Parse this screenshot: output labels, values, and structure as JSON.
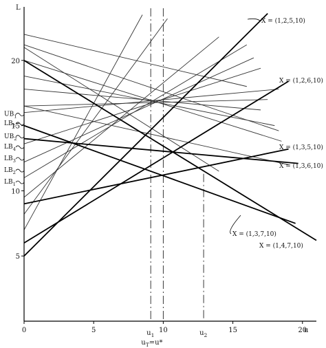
{
  "chart_data": {
    "type": "line",
    "xlim": [
      0,
      21
    ],
    "ylim": [
      0,
      24
    ],
    "x_ticks": [
      {
        "v": 0,
        "label": "0"
      },
      {
        "v": 5,
        "label": "5"
      },
      {
        "v": 10,
        "label": "10"
      },
      {
        "v": 15,
        "label": "15"
      },
      {
        "v": 20,
        "label": "20"
      }
    ],
    "y_ticks": [
      {
        "v": 5,
        "label": "5"
      },
      {
        "v": 10,
        "label": "10"
      },
      {
        "v": 15,
        "label": "15"
      },
      {
        "v": 20,
        "label": "20"
      }
    ],
    "x_axis_name": "u",
    "y_axis_name": "L",
    "vertical_markers": [
      {
        "x": 9.1,
        "label": "u1",
        "label_main": "u",
        "label_sub": "1",
        "dash": "long",
        "y_top": 24
      },
      {
        "x": 10.0,
        "label": "10",
        "dash": "long",
        "y_top": 24
      },
      {
        "x": 12.9,
        "label": "u2",
        "label_main": "u",
        "label_sub": "2",
        "dash": "long",
        "y_top": 11.3
      }
    ],
    "bottom_formula": {
      "main": "u",
      "sub": "T",
      "rest": "=u*"
    },
    "bound_labels": [
      {
        "main": "UB",
        "sub": "1",
        "y": 15.9
      },
      {
        "main": "LB",
        "sub": "5",
        "y": 15.2
      },
      {
        "main": "UB",
        "sub": "2",
        "y": 14.2
      },
      {
        "main": "LB",
        "sub": "4",
        "y": 13.4
      },
      {
        "main": "LB",
        "sub": "3",
        "y": 12.5
      },
      {
        "main": "LB",
        "sub": "2",
        "y": 11.6
      },
      {
        "main": "LB",
        "sub": "1",
        "y": 10.7
      }
    ],
    "highlighted_series": [
      {
        "name": "X = (1,2,5,10)",
        "x": [
          0,
          17.5
        ],
        "y": [
          5.0,
          23.6
        ]
      },
      {
        "name": "X = (1,2,6,10)",
        "x": [
          0,
          19.0
        ],
        "y": [
          6.0,
          18.4
        ]
      },
      {
        "name": "X = (1,3,5,10)",
        "x": [
          0,
          19.0
        ],
        "y": [
          9.0,
          13.2
        ]
      },
      {
        "name": "X = (1,3,6,10)",
        "x": [
          0,
          19.7
        ],
        "y": [
          14.0,
          12.1
        ]
      },
      {
        "name": "X = (1,3,7,10)",
        "x": [
          0,
          19.5
        ],
        "y": [
          15.0,
          7.5
        ]
      },
      {
        "name": "X = (1,4,7,10)",
        "x": [
          0,
          21.0
        ],
        "y": [
          20.0,
          6.2
        ]
      }
    ],
    "other_lines": [
      {
        "x": [
          0,
          8.5
        ],
        "y": [
          7.0,
          23.5
        ]
      },
      {
        "x": [
          0,
          10.3
        ],
        "y": [
          8.2,
          23.2
        ]
      },
      {
        "x": [
          0,
          14.0
        ],
        "y": [
          9.5,
          21.8
        ]
      },
      {
        "x": [
          0,
          16.0
        ],
        "y": [
          11.0,
          21.2
        ]
      },
      {
        "x": [
          0,
          16.5
        ],
        "y": [
          12.2,
          20.2
        ]
      },
      {
        "x": [
          0,
          17.0
        ],
        "y": [
          13.6,
          19.4
        ]
      },
      {
        "x": [
          0,
          18.3
        ],
        "y": [
          16.0,
          17.8
        ]
      },
      {
        "x": [
          0,
          17.5
        ],
        "y": [
          16.5,
          17.0
        ]
      },
      {
        "x": [
          0,
          17.0
        ],
        "y": [
          17.8,
          16.2
        ]
      },
      {
        "x": [
          0,
          18.0
        ],
        "y": [
          18.8,
          15.0
        ]
      },
      {
        "x": [
          0,
          18.5
        ],
        "y": [
          20.0,
          13.8
        ]
      },
      {
        "x": [
          0,
          18.3
        ],
        "y": [
          21.2,
          14.6
        ]
      },
      {
        "x": [
          0,
          14.0
        ],
        "y": [
          21.0,
          11.5
        ]
      },
      {
        "x": [
          0,
          16.0
        ],
        "y": [
          22.0,
          18.0
        ]
      },
      {
        "x": [
          0,
          19.0
        ],
        "y": [
          16.5,
          12.0
        ]
      }
    ]
  }
}
